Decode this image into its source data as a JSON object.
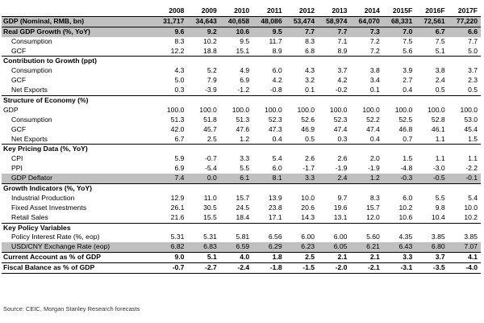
{
  "header": {
    "label": "GDP (Nominal, RMB, bn)",
    "years": [
      "2008",
      "2009",
      "2010",
      "2011",
      "2012",
      "2013",
      "2014",
      "2015F",
      "2016F",
      "2017F"
    ],
    "values": [
      "31,717",
      "34,643",
      "40,658",
      "48,086",
      "53,474",
      "58,974",
      "64,070",
      "68,331",
      "72,561",
      "77,220"
    ]
  },
  "rows": [
    {
      "label": "Real GDP Growth (%, YoY)",
      "type": "sec",
      "values": [
        "9.6",
        "9.2",
        "10.6",
        "9.5",
        "7.7",
        "7.7",
        "7.3",
        "7.0",
        "6.7",
        "6.6"
      ]
    },
    {
      "label": "Consumption",
      "type": "item",
      "values": [
        "8.3",
        "10.2",
        "9.5",
        "11.7",
        "8.3",
        "7.1",
        "7.2",
        "7.5",
        "7.5",
        "7.7"
      ]
    },
    {
      "label": "GCF",
      "type": "item",
      "values": [
        "12.2",
        "18.8",
        "15.1",
        "8.9",
        "6.8",
        "8.9",
        "7.2",
        "5.6",
        "5.1",
        "5.0"
      ]
    },
    {
      "label": "Contribution to Growth (ppt)",
      "type": "sec",
      "values": [
        "",
        "",
        "",
        "",
        "",
        "",
        "",
        "",
        "",
        ""
      ]
    },
    {
      "label": "Consumption",
      "type": "item",
      "values": [
        "4.3",
        "5.2",
        "4.9",
        "6.0",
        "4.3",
        "3.7",
        "3.8",
        "3.9",
        "3.8",
        "3.7"
      ]
    },
    {
      "label": "GCF",
      "type": "item",
      "values": [
        "5.0",
        "7.9",
        "6.9",
        "4.2",
        "3.2",
        "4.2",
        "3.4",
        "2.7",
        "2.4",
        "2.3"
      ]
    },
    {
      "label": "Net Exports",
      "type": "item",
      "values": [
        "0.3",
        "-3.9",
        "-1.2",
        "-0.8",
        "0.1",
        "-0.2",
        "0.1",
        "0.4",
        "0.5",
        "0.5"
      ]
    },
    {
      "label": "Structure of Economy (%)",
      "type": "sec",
      "values": [
        "",
        "",
        "",
        "",
        "",
        "",
        "",
        "",
        "",
        ""
      ]
    },
    {
      "label": "GDP",
      "type": "plain",
      "values": [
        "100.0",
        "100.0",
        "100.0",
        "100.0",
        "100.0",
        "100.0",
        "100.0",
        "100.0",
        "100.0",
        "100.0"
      ]
    },
    {
      "label": "Consumption",
      "type": "item",
      "values": [
        "51.3",
        "51.8",
        "51.3",
        "52.3",
        "52.6",
        "52.3",
        "52.2",
        "52.5",
        "52.8",
        "53.0"
      ]
    },
    {
      "label": "GCF",
      "type": "item",
      "values": [
        "42.0",
        "45.7",
        "47.6",
        "47.3",
        "46.9",
        "47.4",
        "47.4",
        "46.8",
        "46.1",
        "45.4"
      ]
    },
    {
      "label": "Net Exports",
      "type": "item",
      "values": [
        "6.7",
        "2.5",
        "1.2",
        "0.4",
        "0.5",
        "0.3",
        "0.4",
        "0.7",
        "1.1",
        "1.5"
      ]
    },
    {
      "label": "Key Pricing Data (%, YoY)",
      "type": "sec",
      "values": [
        "",
        "",
        "",
        "",
        "",
        "",
        "",
        "",
        "",
        ""
      ]
    },
    {
      "label": "CPI",
      "type": "item",
      "values": [
        "5.9",
        "-0.7",
        "3.3",
        "5.4",
        "2.6",
        "2.6",
        "2.0",
        "1.5",
        "1.1",
        "1.1"
      ]
    },
    {
      "label": "PPI",
      "type": "item",
      "values": [
        "6.9",
        "-5.4",
        "5.5",
        "6.0",
        "-1.7",
        "-1.9",
        "-1.9",
        "-4.8",
        "-3.0",
        "-2.2"
      ]
    },
    {
      "label": "GDP Deflator",
      "type": "item-hl",
      "values": [
        "7.4",
        "0.0",
        "6.1",
        "8.1",
        "3.3",
        "2.4",
        "1.2",
        "-0.3",
        "-0.5",
        "-0.1"
      ]
    },
    {
      "label": "Growth Indicators (%, YoY)",
      "type": "sec",
      "values": [
        "",
        "",
        "",
        "",
        "",
        "",
        "",
        "",
        "",
        ""
      ]
    },
    {
      "label": "Industrial Production",
      "type": "item",
      "values": [
        "12.9",
        "11.0",
        "15.7",
        "13.9",
        "10.0",
        "9.7",
        "8.3",
        "6.0",
        "5.5",
        "5.4"
      ]
    },
    {
      "label": "Fixed Asset Investments",
      "type": "item",
      "values": [
        "26.1",
        "30.5",
        "24.5",
        "23.8",
        "20.6",
        "19.6",
        "15.7",
        "10.2",
        "9.8",
        "10.0"
      ]
    },
    {
      "label": "Retail Sales",
      "type": "item",
      "values": [
        "21.6",
        "15.5",
        "18.4",
        "17.1",
        "14.3",
        "13.1",
        "12.0",
        "10.6",
        "10.4",
        "10.2"
      ]
    },
    {
      "label": "Key Policy Variables",
      "type": "sec",
      "values": [
        "",
        "",
        "",
        "",
        "",
        "",
        "",
        "",
        "",
        ""
      ]
    },
    {
      "label": "Policy Interest Rate (%, eop)",
      "type": "item",
      "values": [
        "5.31",
        "5.31",
        "5.81",
        "6.56",
        "6.00",
        "6.00",
        "5.60",
        "4.35",
        "3.85",
        "3.85"
      ]
    },
    {
      "label": "USD/CNY Exchange Rate (eop)",
      "type": "item-hl",
      "values": [
        "6.82",
        "6.83",
        "6.59",
        "6.29",
        "6.23",
        "6.05",
        "6.21",
        "6.43",
        "6.80",
        "7.07"
      ]
    },
    {
      "label": "Current Account as % of GDP",
      "type": "sec",
      "values": [
        "9.0",
        "5.1",
        "4.0",
        "1.8",
        "2.5",
        "2.1",
        "2.1",
        "3.3",
        "3.7",
        "4.1"
      ]
    },
    {
      "label": "Fiscal Balance as % of GDP",
      "type": "sec",
      "values": [
        "-0.7",
        "-2.7",
        "-2.4",
        "-1.8",
        "-1.5",
        "-2.0",
        "-2.1",
        "-3.1",
        "-3.5",
        "-4.0"
      ]
    }
  ],
  "source": "Source: CEIC, Morgan Stanley Research forecasts"
}
